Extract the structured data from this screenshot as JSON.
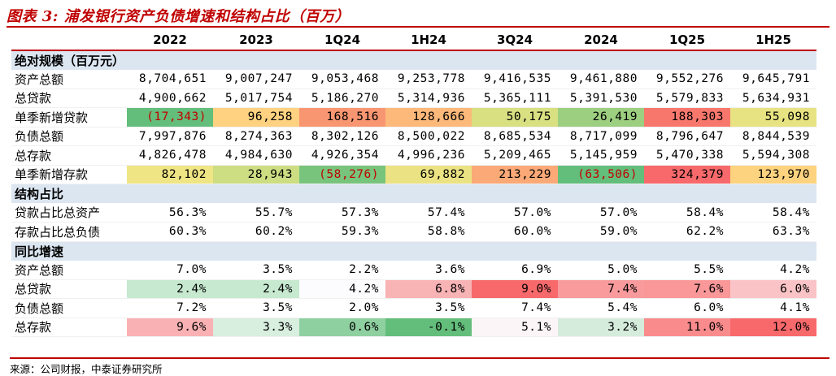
{
  "title": "图表 3:  浦发银行资产负债增速和结构占比（百万）",
  "columns": [
    "",
    "2022",
    "2023",
    "1Q24",
    "1H24",
    "3Q24",
    "2024",
    "1Q25",
    "1H25"
  ],
  "sections": [
    {
      "label": "绝对规模（百万元）",
      "rows": [
        {
          "label": "资产总额",
          "values": [
            "8,704,651",
            "9,007,247",
            "9,053,468",
            "9,253,778",
            "9,416,535",
            "9,461,880",
            "9,552,276",
            "9,645,791"
          ],
          "colors": [
            "",
            "",
            "",
            "",
            "",
            "",
            "",
            ""
          ]
        },
        {
          "label": "总贷款",
          "values": [
            "4,900,662",
            "5,017,754",
            "5,186,270",
            "5,314,936",
            "5,365,111",
            "5,391,530",
            "5,579,833",
            "5,634,931"
          ],
          "colors": [
            "",
            "",
            "",
            "",
            "",
            "",
            "",
            ""
          ]
        },
        {
          "label": "单季新增贷款",
          "values": [
            "(17,343)",
            "96,258",
            "168,516",
            "128,666",
            "50,175",
            "26,419",
            "188,303",
            "55,098"
          ],
          "colors": [
            "#63be7b",
            "#fed280",
            "#f99672",
            "#fcb97a",
            "#d8e082",
            "#9ccf7f",
            "#f8776d",
            "#e7e382"
          ]
        },
        {
          "label": "负债总额",
          "values": [
            "7,997,876",
            "8,274,363",
            "8,302,126",
            "8,500,022",
            "8,685,534",
            "8,717,099",
            "8,796,647",
            "8,844,539"
          ],
          "colors": [
            "",
            "",
            "",
            "",
            "",
            "",
            "",
            ""
          ]
        },
        {
          "label": "总存款",
          "values": [
            "4,826,478",
            "4,984,630",
            "4,926,354",
            "4,996,236",
            "5,209,465",
            "5,145,959",
            "5,470,338",
            "5,594,308"
          ],
          "colors": [
            "",
            "",
            "",
            "",
            "",
            "",
            "",
            ""
          ]
        },
        {
          "label": "单季新增存款",
          "values": [
            "82,102",
            "28,943",
            "(58,276)",
            "69,882",
            "213,229",
            "(63,506)",
            "324,379",
            "123,970"
          ],
          "colors": [
            "#f0e584",
            "#ccdd82",
            "#78c47c",
            "#ebe383",
            "#fba977",
            "#63be7b",
            "#f8696b",
            "#fdd37f"
          ]
        }
      ]
    },
    {
      "label": "结构占比",
      "rows": [
        {
          "label": "贷款占比总资产",
          "values": [
            "56.3%",
            "55.7%",
            "57.3%",
            "57.4%",
            "57.0%",
            "57.0%",
            "58.4%",
            "58.4%"
          ],
          "colors": [
            "",
            "",
            "",
            "",
            "",
            "",
            "",
            ""
          ]
        },
        {
          "label": "存款占比总负债",
          "values": [
            "60.3%",
            "60.2%",
            "59.3%",
            "58.8%",
            "60.0%",
            "59.0%",
            "62.2%",
            "63.3%"
          ],
          "colors": [
            "",
            "",
            "",
            "",
            "",
            "",
            "",
            ""
          ]
        }
      ]
    },
    {
      "label": "同比增速",
      "rows": [
        {
          "label": "资产总额",
          "values": [
            "7.0%",
            "3.5%",
            "2.2%",
            "3.6%",
            "6.9%",
            "5.0%",
            "5.5%",
            "4.2%"
          ],
          "colors": [
            "",
            "",
            "",
            "",
            "",
            "",
            "",
            ""
          ]
        },
        {
          "label": "总贷款",
          "values": [
            "2.4%",
            "2.4%",
            "4.2%",
            "6.8%",
            "9.0%",
            "7.4%",
            "7.6%",
            "6.0%"
          ],
          "colors": [
            "#c6e9cf",
            "#c6e9cf",
            "#fcfcff",
            "#f8b3b5",
            "#f8696b",
            "#f99a9c",
            "#f99799",
            "#fac4c6"
          ]
        },
        {
          "label": "负债总额",
          "values": [
            "7.2%",
            "3.5%",
            "2.0%",
            "3.5%",
            "7.4%",
            "5.4%",
            "6.0%",
            "4.1%"
          ],
          "colors": [
            "",
            "",
            "",
            "",
            "",
            "",
            "",
            ""
          ]
        },
        {
          "label": "总存款",
          "values": [
            "9.6%",
            "3.3%",
            "0.6%",
            "-0.1%",
            "5.1%",
            "3.2%",
            "11.0%",
            "12.0%"
          ],
          "colors": [
            "#f9b1b3",
            "#d8eedf",
            "#8fd0a0",
            "#63be7b",
            "#fcf5f8",
            "#d5ecdc",
            "#f98b8d",
            "#f8696b"
          ]
        }
      ]
    }
  ],
  "source": "来源：公司财报，中泰证券研究所"
}
